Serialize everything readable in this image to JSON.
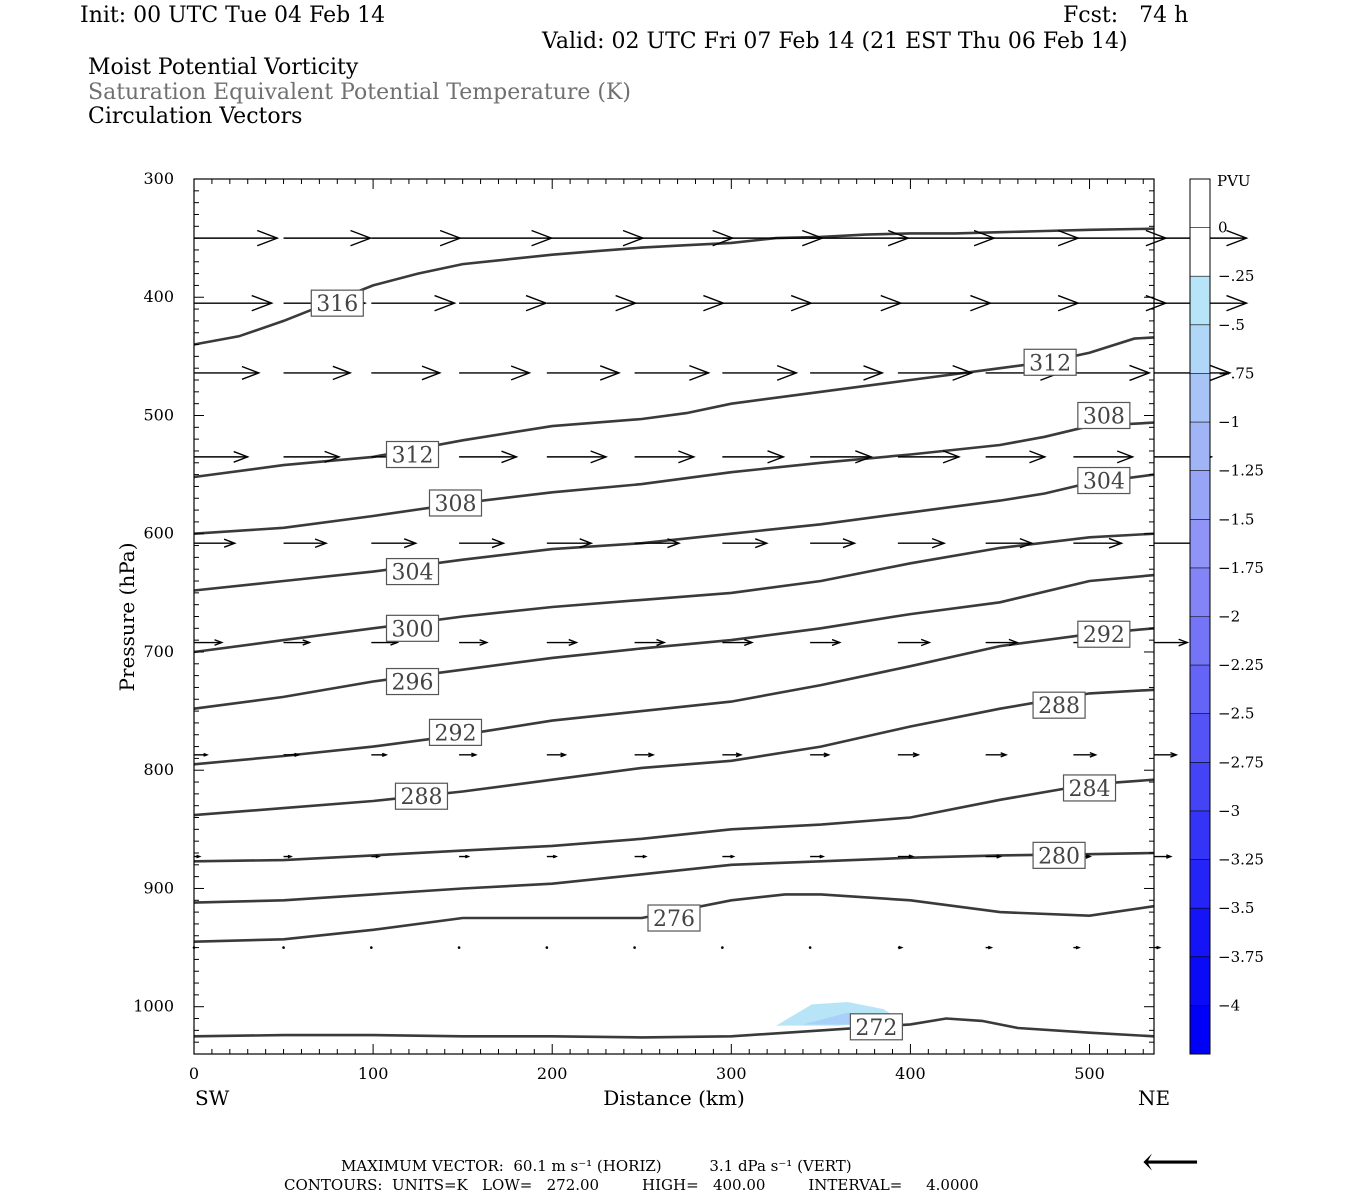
{
  "header": {
    "init": "Init: 00 UTC Tue 04 Feb 14",
    "fcst": "Fcst:   74 h",
    "valid": "Valid: 02 UTC Fri 07 Feb 14 (21 EST Thu 06 Feb 14)",
    "field1": "Moist Potential Vorticity",
    "field2": "Saturation Equivalent Potential Temperature (K)",
    "field3": "Circulation Vectors"
  },
  "footer": {
    "max_vector": "MAXIMUM VECTOR:  60.1 m s⁻¹ (HORIZ)          3.1 dPa s⁻¹ (VERT)",
    "contours": "CONTOURS:  UNITS=K   LOW=   272.00         HIGH=   400.00         INTERVAL=     4.0000"
  },
  "chart_data": {
    "type": "cross-section",
    "xlabel": "Distance (km)",
    "ylabel": "Pressure (hPa)",
    "x_left_end": "SW",
    "x_right_end": "NE",
    "xlim": [
      0,
      536
    ],
    "ylim": [
      300,
      1040
    ],
    "xticks": [
      0,
      100,
      200,
      300,
      400,
      500
    ],
    "yticks": [
      300,
      400,
      500,
      600,
      700,
      800,
      900,
      1000
    ],
    "colorbar": {
      "unit": "PVU",
      "levels": [
        "0",
        "-.25",
        "-.5",
        "-.75",
        "-1",
        "-1.25",
        "-1.5",
        "-1.75",
        "-2",
        "-2.25",
        "-2.5",
        "-2.75",
        "-3",
        "-3.25",
        "-3.5",
        "-3.75",
        "-4"
      ],
      "colors": [
        "#ffffff",
        "#ffffff",
        "#b8e4f8",
        "#b0d6f8",
        "#a8c4f6",
        "#a0b4f6",
        "#98a4f6",
        "#9094f6",
        "#8484f6",
        "#7474f6",
        "#6464f6",
        "#5454f6",
        "#4444f6",
        "#3434f6",
        "#2424f6",
        "#1414f6",
        "#0a0af6",
        "#0000f6"
      ]
    },
    "contours": [
      {
        "label": "316",
        "points": [
          [
            0,
            440
          ],
          [
            25,
            433
          ],
          [
            50,
            420
          ],
          [
            75,
            405
          ],
          [
            100,
            390
          ],
          [
            125,
            380
          ],
          [
            150,
            372
          ],
          [
            175,
            368
          ],
          [
            200,
            364
          ],
          [
            225,
            361
          ],
          [
            250,
            358
          ],
          [
            275,
            356
          ],
          [
            300,
            354
          ],
          [
            325,
            350
          ],
          [
            350,
            349
          ],
          [
            375,
            347
          ],
          [
            400,
            346
          ],
          [
            425,
            346
          ],
          [
            450,
            345
          ],
          [
            475,
            344
          ],
          [
            500,
            343
          ],
          [
            536,
            342
          ]
        ]
      },
      {
        "label": "312",
        "points": [
          [
            0,
            552
          ],
          [
            50,
            542
          ],
          [
            100,
            535
          ],
          [
            125,
            528
          ],
          [
            150,
            521
          ],
          [
            200,
            509
          ],
          [
            250,
            503
          ],
          [
            275,
            498
          ],
          [
            300,
            490
          ],
          [
            350,
            480
          ],
          [
            400,
            470
          ],
          [
            450,
            460
          ],
          [
            475,
            455
          ],
          [
            500,
            447
          ],
          [
            525,
            435
          ],
          [
            536,
            434
          ]
        ]
      },
      {
        "label": "308",
        "points": [
          [
            0,
            600
          ],
          [
            50,
            595
          ],
          [
            100,
            585
          ],
          [
            150,
            574
          ],
          [
            200,
            565
          ],
          [
            250,
            558
          ],
          [
            300,
            548
          ],
          [
            350,
            540
          ],
          [
            400,
            533
          ],
          [
            450,
            525
          ],
          [
            475,
            518
          ],
          [
            500,
            509
          ],
          [
            536,
            506
          ]
        ]
      },
      {
        "label": "304",
        "points": [
          [
            0,
            648
          ],
          [
            50,
            640
          ],
          [
            100,
            632
          ],
          [
            150,
            622
          ],
          [
            200,
            613
          ],
          [
            250,
            608
          ],
          [
            300,
            600
          ],
          [
            350,
            592
          ],
          [
            400,
            582
          ],
          [
            450,
            572
          ],
          [
            475,
            566
          ],
          [
            500,
            557
          ],
          [
            536,
            550
          ]
        ]
      },
      {
        "label": "300",
        "points": [
          [
            0,
            700
          ],
          [
            50,
            690
          ],
          [
            100,
            680
          ],
          [
            150,
            670
          ],
          [
            200,
            662
          ],
          [
            250,
            656
          ],
          [
            300,
            650
          ],
          [
            350,
            640
          ],
          [
            400,
            625
          ],
          [
            450,
            612
          ],
          [
            500,
            603
          ],
          [
            536,
            600
          ]
        ]
      },
      {
        "label": "296",
        "points": [
          [
            0,
            748
          ],
          [
            50,
            738
          ],
          [
            100,
            725
          ],
          [
            150,
            715
          ],
          [
            200,
            705
          ],
          [
            250,
            697
          ],
          [
            300,
            690
          ],
          [
            350,
            680
          ],
          [
            400,
            668
          ],
          [
            450,
            658
          ],
          [
            500,
            640
          ],
          [
            536,
            635
          ]
        ]
      },
      {
        "label": "292",
        "points": [
          [
            0,
            795
          ],
          [
            50,
            788
          ],
          [
            100,
            780
          ],
          [
            150,
            770
          ],
          [
            200,
            758
          ],
          [
            250,
            750
          ],
          [
            300,
            742
          ],
          [
            350,
            728
          ],
          [
            400,
            712
          ],
          [
            450,
            695
          ],
          [
            500,
            685
          ],
          [
            536,
            680
          ]
        ]
      },
      {
        "label": "288",
        "points": [
          [
            0,
            838
          ],
          [
            50,
            832
          ],
          [
            100,
            826
          ],
          [
            150,
            818
          ],
          [
            200,
            808
          ],
          [
            250,
            798
          ],
          [
            300,
            792
          ],
          [
            350,
            780
          ],
          [
            400,
            763
          ],
          [
            450,
            748
          ],
          [
            500,
            735
          ],
          [
            536,
            732
          ]
        ]
      },
      {
        "label": "284",
        "points": [
          [
            0,
            877
          ],
          [
            50,
            876
          ],
          [
            100,
            872
          ],
          [
            150,
            868
          ],
          [
            200,
            864
          ],
          [
            250,
            858
          ],
          [
            300,
            850
          ],
          [
            350,
            846
          ],
          [
            400,
            840
          ],
          [
            450,
            825
          ],
          [
            500,
            812
          ],
          [
            536,
            808
          ]
        ]
      },
      {
        "label": "280",
        "points": [
          [
            0,
            912
          ],
          [
            50,
            910
          ],
          [
            100,
            905
          ],
          [
            150,
            900
          ],
          [
            200,
            896
          ],
          [
            250,
            888
          ],
          [
            300,
            880
          ],
          [
            350,
            877
          ],
          [
            400,
            874
          ],
          [
            450,
            872
          ],
          [
            500,
            871
          ],
          [
            536,
            870
          ]
        ]
      },
      {
        "label": "276",
        "points": [
          [
            0,
            945
          ],
          [
            50,
            943
          ],
          [
            100,
            935
          ],
          [
            150,
            925
          ],
          [
            200,
            925
          ],
          [
            250,
            925
          ],
          [
            300,
            910
          ],
          [
            330,
            905
          ],
          [
            350,
            905
          ],
          [
            400,
            910
          ],
          [
            450,
            920
          ],
          [
            500,
            923
          ],
          [
            536,
            915
          ]
        ]
      },
      {
        "label": "272",
        "points": [
          [
            0,
            1025
          ],
          [
            50,
            1024
          ],
          [
            100,
            1024
          ],
          [
            150,
            1025
          ],
          [
            200,
            1025
          ],
          [
            250,
            1026
          ],
          [
            300,
            1025
          ],
          [
            350,
            1020
          ],
          [
            400,
            1015
          ],
          [
            420,
            1010
          ],
          [
            440,
            1012
          ],
          [
            460,
            1018
          ],
          [
            500,
            1022
          ],
          [
            536,
            1025
          ]
        ]
      }
    ],
    "contour_labels": [
      {
        "text": "316",
        "x": 80,
        "p": 405
      },
      {
        "text": "312",
        "x": 122,
        "p": 533
      },
      {
        "text": "308",
        "x": 146,
        "p": 574
      },
      {
        "text": "304",
        "x": 122,
        "p": 632
      },
      {
        "text": "300",
        "x": 122,
        "p": 680
      },
      {
        "text": "296",
        "x": 122,
        "p": 725
      },
      {
        "text": "292",
        "x": 146,
        "p": 768
      },
      {
        "text": "288",
        "x": 127,
        "p": 822
      },
      {
        "text": "276",
        "x": 268,
        "p": 925
      },
      {
        "text": "312",
        "x": 478,
        "p": 455
      },
      {
        "text": "308",
        "x": 508,
        "p": 500
      },
      {
        "text": "304",
        "x": 508,
        "p": 555
      },
      {
        "text": "292",
        "x": 508,
        "p": 685
      },
      {
        "text": "288",
        "x": 483,
        "p": 745
      },
      {
        "text": "284",
        "x": 500,
        "p": 815
      },
      {
        "text": "280",
        "x": 483,
        "p": 872
      },
      {
        "text": "272",
        "x": 381,
        "p": 1017
      }
    ],
    "vector_rows": [
      {
        "p": 350,
        "u": [
          45,
          47,
          48,
          50,
          52,
          53,
          54,
          53,
          52,
          50,
          50,
          50
        ],
        "w": [
          0,
          0,
          0,
          0,
          0,
          0,
          0,
          0,
          0,
          0,
          0,
          0
        ]
      },
      {
        "p": 405,
        "u": [
          42,
          44,
          45,
          47,
          48,
          48,
          48,
          49,
          50,
          50,
          50,
          50
        ],
        "w": [
          0,
          0,
          0,
          0,
          0,
          0,
          0,
          0,
          0,
          0,
          0,
          0
        ]
      },
      {
        "p": 464,
        "u": [
          35,
          36,
          37,
          38,
          39,
          40,
          40,
          39,
          40,
          40,
          41,
          41
        ],
        "w": [
          0,
          0,
          0,
          0,
          0,
          0,
          0,
          0,
          0,
          0,
          0,
          0
        ]
      },
      {
        "p": 535,
        "u": [
          29,
          30,
          30,
          31,
          32,
          32,
          33,
          33,
          33,
          32,
          32,
          31
        ],
        "w": [
          0,
          0,
          0,
          0,
          0,
          0,
          0,
          0,
          0,
          0,
          0,
          0
        ]
      },
      {
        "p": 608,
        "u": [
          22,
          23,
          24,
          24,
          24,
          24,
          24,
          24,
          25,
          25,
          26,
          26
        ],
        "w": [
          0,
          0,
          0,
          0,
          0,
          0,
          0,
          0,
          0,
          0,
          0,
          0
        ]
      },
      {
        "p": 692,
        "u": [
          15,
          14,
          14,
          15,
          16,
          16,
          16,
          16,
          17,
          17,
          18,
          18
        ],
        "w": [
          0,
          0,
          0,
          0,
          0,
          0,
          0,
          0,
          0,
          0,
          0,
          0
        ]
      },
      {
        "p": 787,
        "u": [
          7,
          8,
          8,
          9,
          10,
          10,
          10,
          10,
          11,
          11,
          12,
          12
        ],
        "w": [
          0,
          0,
          0,
          0,
          0,
          0,
          0,
          0,
          0,
          0,
          0,
          0
        ]
      },
      {
        "p": 873,
        "u": [
          3,
          4,
          4,
          5,
          5,
          6,
          6,
          7,
          8,
          8,
          9,
          9
        ],
        "w": [
          0,
          0,
          0,
          0,
          0,
          0,
          0,
          0,
          0,
          0,
          0,
          0
        ]
      },
      {
        "p": 950,
        "u": [
          0,
          0.5,
          0.5,
          0.5,
          0.5,
          0.5,
          0.5,
          1,
          2,
          3,
          3,
          3
        ],
        "w": [
          0,
          0,
          0,
          0,
          0,
          0,
          0,
          0,
          0,
          0,
          0,
          0
        ]
      }
    ],
    "vector_x": [
      0,
      50,
      99,
      148,
      197,
      246,
      295,
      344,
      393,
      442,
      491,
      536
    ],
    "pv_shading": [
      {
        "points": [
          [
            325,
            1016
          ],
          [
            345,
            998
          ],
          [
            365,
            996
          ],
          [
            385,
            1002
          ],
          [
            395,
            1012
          ],
          [
            360,
            1016
          ]
        ],
        "color": "#b8e4f8"
      },
      {
        "points": [
          [
            340,
            1015
          ],
          [
            365,
            1005
          ],
          [
            385,
            1008
          ],
          [
            380,
            1015
          ]
        ],
        "color": "#a8d0f8"
      }
    ],
    "reference_vector": "⟵"
  }
}
